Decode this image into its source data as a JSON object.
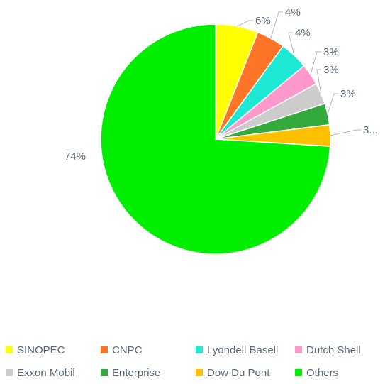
{
  "chart_data": {
    "type": "pie",
    "title": "",
    "slices": [
      {
        "name": "SINOPEC",
        "value": 6,
        "label": "6%",
        "color": "#ffff00"
      },
      {
        "name": "CNPC",
        "value": 4,
        "label": "4%",
        "color": "#ff7527"
      },
      {
        "name": "Lyondell Basell",
        "value": 4,
        "label": "4%",
        "color": "#1de9d4"
      },
      {
        "name": "Dutch Shell",
        "value": 3,
        "label": "3%",
        "color": "#ff99cc"
      },
      {
        "name": "Exxon Mobil",
        "value": 3,
        "label": "3%",
        "color": "#cccccc"
      },
      {
        "name": "Enterprise",
        "value": 3,
        "label": "3%",
        "color": "#34a93c"
      },
      {
        "name": "Dow Du Pont",
        "value": 3,
        "label": "3...",
        "color": "#ffc000"
      },
      {
        "name": "Others",
        "value": 74,
        "label": "74%",
        "color": "#00ee00"
      }
    ],
    "start_angle": "12 o'clock, clockwise",
    "legend_position": "bottom"
  }
}
